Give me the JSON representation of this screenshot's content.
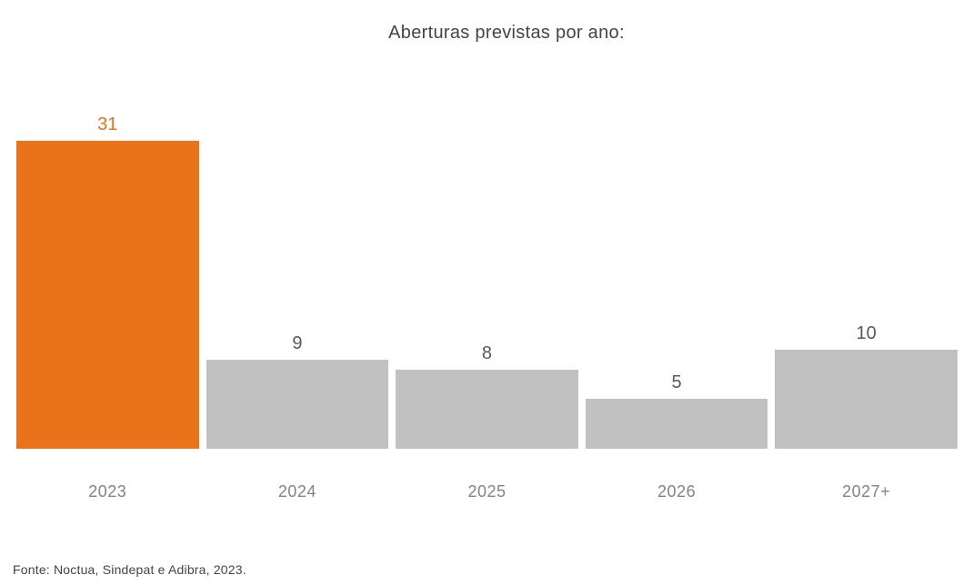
{
  "chart_data": {
    "type": "bar",
    "title": "Aberturas previstas por ano:",
    "categories": [
      "2023",
      "2024",
      "2025",
      "2026",
      "2027+"
    ],
    "values": [
      31,
      9,
      8,
      5,
      10
    ],
    "xlabel": "",
    "ylabel": "",
    "ylim": [
      0,
      31
    ],
    "grid": false,
    "legend": false,
    "highlight_index": 0,
    "highlight_color": "#E8731A",
    "bar_color": "#C1C1C1",
    "highlight_value_label_color": "#E8731A",
    "value_label_color": "#595959",
    "axis_label_color": "#7F8487",
    "title_color": "#3F4549"
  },
  "footer": {
    "source": "Fonte: Noctua, Sindepat e Adibra, 2023."
  }
}
